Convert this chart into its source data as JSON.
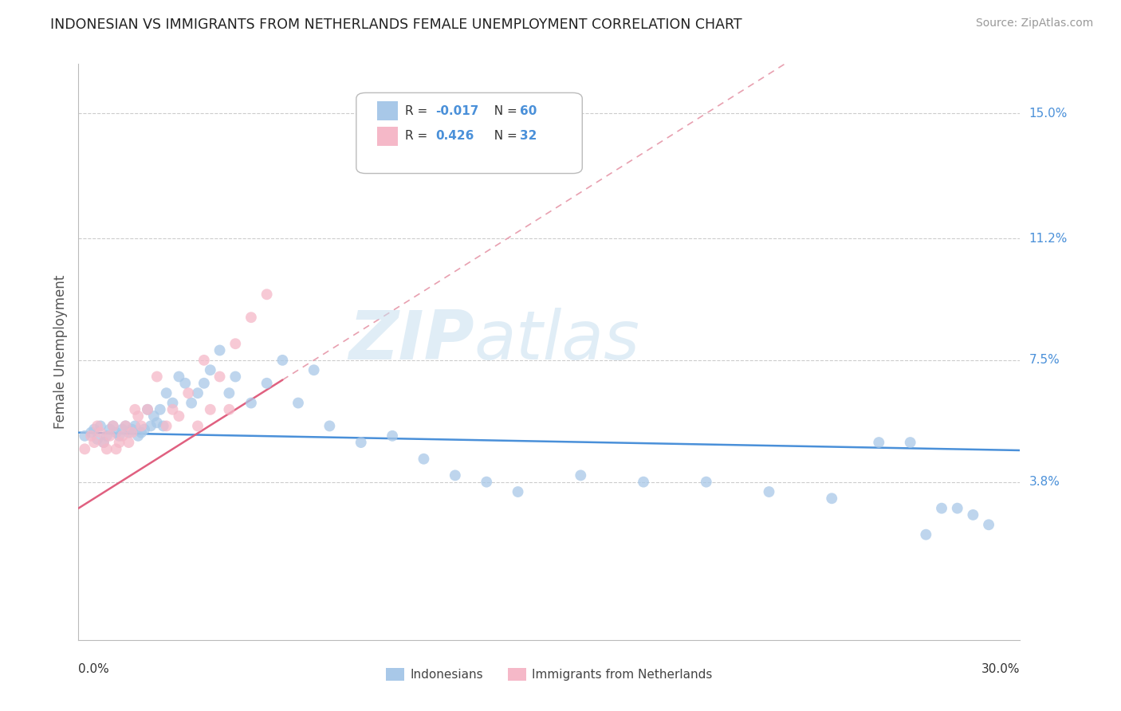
{
  "title": "INDONESIAN VS IMMIGRANTS FROM NETHERLANDS FEMALE UNEMPLOYMENT CORRELATION CHART",
  "source": "Source: ZipAtlas.com",
  "ylabel": "Female Unemployment",
  "ytick_labels": [
    "15.0%",
    "11.2%",
    "7.5%",
    "3.8%"
  ],
  "ytick_values": [
    0.15,
    0.112,
    0.075,
    0.038
  ],
  "xmin": 0.0,
  "xmax": 0.3,
  "ymin": -0.01,
  "ymax": 0.165,
  "legend_bottom": [
    "Indonesians",
    "Immigrants from Netherlands"
  ],
  "indonesian_color": "#a8c8e8",
  "netherlands_color": "#f5b8c8",
  "trend_indo_intercept": 0.053,
  "trend_indo_slope": -0.018,
  "trend_neth_intercept": 0.03,
  "trend_neth_slope": 0.6,
  "watermark_zip": "ZIP",
  "watermark_atlas": "atlas",
  "indo_x": [
    0.002,
    0.004,
    0.005,
    0.006,
    0.007,
    0.008,
    0.009,
    0.01,
    0.011,
    0.012,
    0.013,
    0.014,
    0.015,
    0.016,
    0.017,
    0.018,
    0.019,
    0.02,
    0.021,
    0.022,
    0.023,
    0.024,
    0.025,
    0.026,
    0.027,
    0.028,
    0.03,
    0.032,
    0.034,
    0.036,
    0.038,
    0.04,
    0.042,
    0.045,
    0.048,
    0.05,
    0.055,
    0.06,
    0.065,
    0.07,
    0.075,
    0.08,
    0.09,
    0.1,
    0.11,
    0.12,
    0.13,
    0.14,
    0.16,
    0.18,
    0.2,
    0.22,
    0.24,
    0.255,
    0.265,
    0.27,
    0.275,
    0.28,
    0.285,
    0.29
  ],
  "indo_y": [
    0.052,
    0.053,
    0.054,
    0.051,
    0.055,
    0.05,
    0.052,
    0.054,
    0.055,
    0.053,
    0.052,
    0.054,
    0.055,
    0.053,
    0.054,
    0.055,
    0.052,
    0.053,
    0.054,
    0.06,
    0.055,
    0.058,
    0.056,
    0.06,
    0.055,
    0.065,
    0.062,
    0.07,
    0.068,
    0.062,
    0.065,
    0.068,
    0.072,
    0.078,
    0.065,
    0.07,
    0.062,
    0.068,
    0.075,
    0.062,
    0.072,
    0.055,
    0.05,
    0.052,
    0.045,
    0.04,
    0.038,
    0.035,
    0.04,
    0.038,
    0.038,
    0.035,
    0.033,
    0.05,
    0.05,
    0.022,
    0.03,
    0.03,
    0.028,
    0.025
  ],
  "neth_x": [
    0.002,
    0.004,
    0.005,
    0.006,
    0.007,
    0.008,
    0.009,
    0.01,
    0.011,
    0.012,
    0.013,
    0.014,
    0.015,
    0.016,
    0.017,
    0.018,
    0.019,
    0.02,
    0.022,
    0.025,
    0.028,
    0.03,
    0.032,
    0.035,
    0.038,
    0.04,
    0.042,
    0.045,
    0.048,
    0.05,
    0.055,
    0.06
  ],
  "neth_y": [
    0.048,
    0.052,
    0.05,
    0.055,
    0.053,
    0.05,
    0.048,
    0.052,
    0.055,
    0.048,
    0.05,
    0.052,
    0.055,
    0.05,
    0.053,
    0.06,
    0.058,
    0.055,
    0.06,
    0.07,
    0.055,
    0.06,
    0.058,
    0.065,
    0.055,
    0.075,
    0.06,
    0.07,
    0.06,
    0.08,
    0.088,
    0.095
  ]
}
